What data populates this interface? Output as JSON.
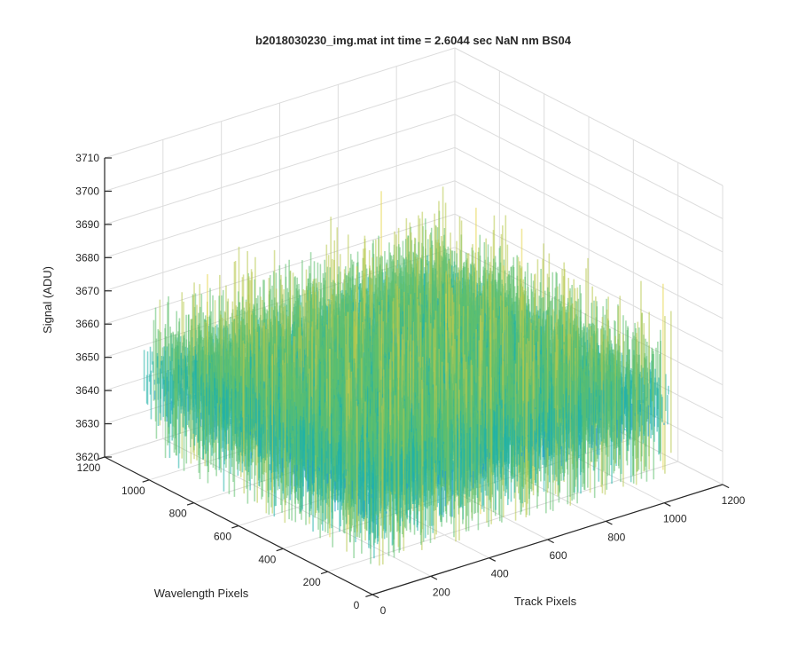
{
  "chart_data": {
    "type": "surface",
    "title": "b2018030230_img.mat int time = 2.6044 sec  NaN nm BS04",
    "xlabel": "Track Pixels",
    "ylabel": "Wavelength Pixels",
    "zlabel": "Signal (ADU)",
    "xlim": [
      0,
      1200
    ],
    "ylim": [
      0,
      1200
    ],
    "zlim": [
      3620,
      3710
    ],
    "x_ticks": [
      "0",
      "200",
      "400",
      "600",
      "800",
      "1000",
      "1200"
    ],
    "y_ticks": [
      "0",
      "200",
      "400",
      "600",
      "800",
      "1000",
      "1200"
    ],
    "z_ticks": [
      "3620",
      "3630",
      "3640",
      "3650",
      "3660",
      "3670",
      "3680",
      "3690",
      "3700",
      "3710"
    ],
    "data_extent": {
      "x": [
        1,
        1024
      ],
      "y": [
        1,
        1024
      ]
    },
    "z_mean": 3651,
    "z_range": [
      3628,
      3695
    ],
    "grid": true,
    "colormap": [
      "#3f5fd0",
      "#1f9bd4",
      "#21b3a8",
      "#5ec06e",
      "#b8c84e",
      "#e6d54a"
    ]
  }
}
